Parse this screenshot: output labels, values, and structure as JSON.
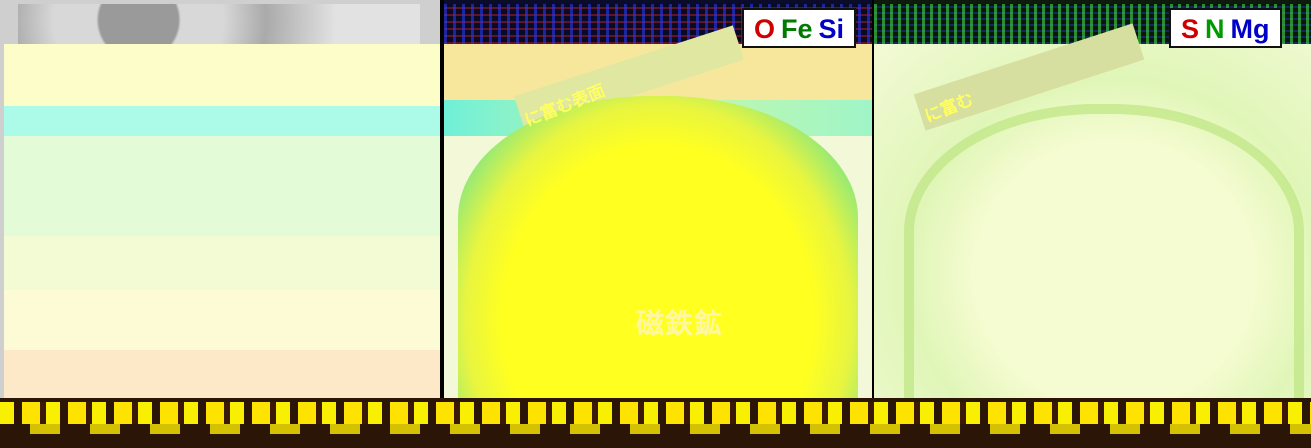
{
  "legends": {
    "panel2": [
      {
        "text": "O",
        "color": "#d10000"
      },
      {
        "text": "Fe",
        "color": "#007a00"
      },
      {
        "text": "Si",
        "color": "#0000c8"
      }
    ],
    "panel3": [
      {
        "text": "S",
        "color": "#d10000"
      },
      {
        "text": "N",
        "color": "#009a00"
      },
      {
        "text": "Mg",
        "color": "#0000c8"
      }
    ]
  },
  "labels": {
    "surface_rich": "に富む表面",
    "rich_in": "に富む",
    "mineral": "磁鉄鉱"
  }
}
